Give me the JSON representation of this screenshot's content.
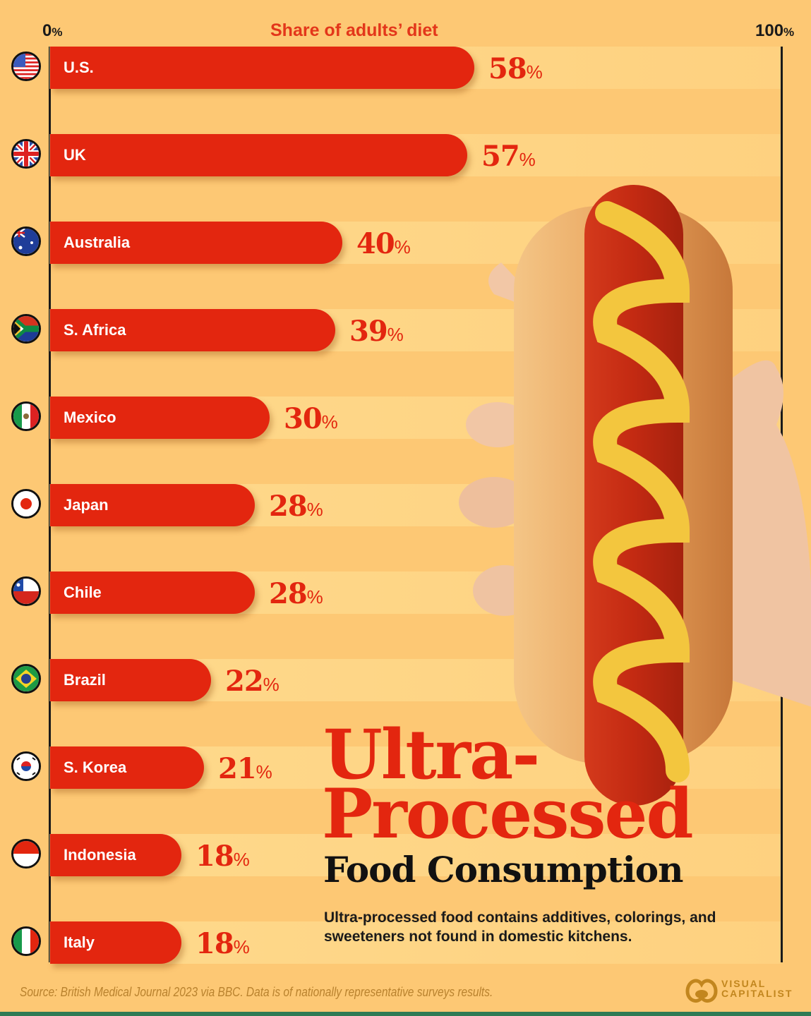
{
  "axis": {
    "min_label": "0",
    "max_label": "100",
    "percent_sign": "%",
    "title": "Share of adults’ diet"
  },
  "rows": [
    {
      "country": "U.S.",
      "value": "58",
      "flag": "us-flag-icon"
    },
    {
      "country": "UK",
      "value": "57",
      "flag": "uk-flag-icon"
    },
    {
      "country": "Australia",
      "value": "40",
      "flag": "australia-flag-icon"
    },
    {
      "country": "S. Africa",
      "value": "39",
      "flag": "south-africa-flag-icon"
    },
    {
      "country": "Mexico",
      "value": "30",
      "flag": "mexico-flag-icon"
    },
    {
      "country": "Japan",
      "value": "28",
      "flag": "japan-flag-icon"
    },
    {
      "country": "Chile",
      "value": "28",
      "flag": "chile-flag-icon"
    },
    {
      "country": "Brazil",
      "value": "22",
      "flag": "brazil-flag-icon"
    },
    {
      "country": "S. Korea",
      "value": "21",
      "flag": "south-korea-flag-icon"
    },
    {
      "country": "Indonesia",
      "value": "18",
      "flag": "indonesia-flag-icon"
    },
    {
      "country": "Italy",
      "value": "18",
      "flag": "italy-flag-icon"
    }
  ],
  "title": {
    "line1": "Ultra-",
    "line2": "Processed",
    "line3": "Food Consumption"
  },
  "subtitle": "Ultra-processed food contains additives, colorings, and sweeteners not found in domestic kitchens.",
  "source": "Source: British Medical Journal 2023 via BBC. Data is of nationally representative surveys results.",
  "logo": {
    "line1": "VISUAL",
    "line2": "CAPITALIST"
  },
  "colors": {
    "background": "#fdc874",
    "bar": "#e3260f",
    "accent_text": "#e3361a",
    "logo": "#c2861e"
  },
  "chart_data": {
    "type": "bar",
    "orientation": "horizontal",
    "title": "Ultra-Processed Food Consumption",
    "subtitle": "Ultra-processed food contains additives, colorings, and sweeteners not found in domestic kitchens.",
    "xlabel": "Share of adults’ diet",
    "ylabel": "",
    "xlim": [
      0,
      100
    ],
    "x_tick_labels": [
      "0%",
      "100%"
    ],
    "categories": [
      "U.S.",
      "UK",
      "Australia",
      "S. Africa",
      "Mexico",
      "Japan",
      "Chile",
      "Brazil",
      "S. Korea",
      "Indonesia",
      "Italy"
    ],
    "values": [
      58,
      57,
      40,
      39,
      30,
      28,
      28,
      22,
      21,
      18,
      18
    ],
    "unit": "%",
    "grid": false,
    "legend": null,
    "source": "British Medical Journal 2023 via BBC"
  }
}
